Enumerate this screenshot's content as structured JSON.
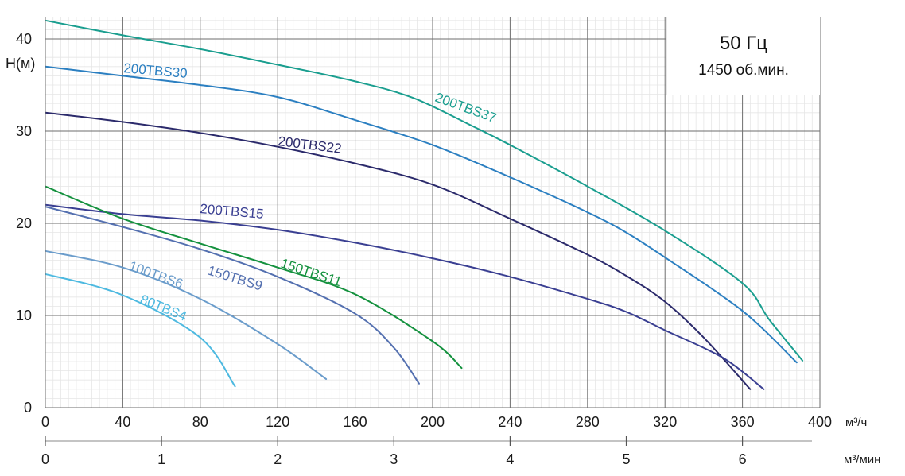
{
  "chart_data": {
    "type": "line",
    "ylabel": "H(м)",
    "x_unit": "м³/ч",
    "x2_unit": "м³/мин",
    "xlim": [
      0,
      400
    ],
    "ylim": [
      0,
      42
    ],
    "x_ticks": [
      "0",
      "40",
      "80",
      "120",
      "160",
      "200",
      "240",
      "280",
      "320",
      "360",
      "400"
    ],
    "x2_ticks": [
      "0",
      "1",
      "2",
      "3",
      "4",
      "5",
      "6"
    ],
    "y_ticks": [
      "0",
      "10",
      "20",
      "30",
      "40"
    ],
    "grid": true,
    "info_box": {
      "frequency": "50 Гц",
      "speed": "1450 об.мин."
    },
    "series": [
      {
        "name": "200TBS37",
        "color": "#1a9e8f",
        "points": [
          [
            0,
            42.0
          ],
          [
            40,
            40.4
          ],
          [
            80,
            38.9
          ],
          [
            120,
            37.2
          ],
          [
            160,
            35.4
          ],
          [
            190,
            33.6
          ],
          [
            220,
            30.6
          ],
          [
            240,
            28.5
          ],
          [
            280,
            24.0
          ],
          [
            320,
            19.2
          ],
          [
            360,
            13.5
          ],
          [
            374,
            9.5
          ],
          [
            391,
            5.1
          ]
        ]
      },
      {
        "name": "200TBS30",
        "color": "#2b7fc1",
        "points": [
          [
            0,
            37.0
          ],
          [
            40,
            36.0
          ],
          [
            80,
            35.0
          ],
          [
            120,
            33.7
          ],
          [
            160,
            31.2
          ],
          [
            200,
            28.5
          ],
          [
            240,
            25.0
          ],
          [
            280,
            21.2
          ],
          [
            300,
            19.0
          ],
          [
            320,
            16.3
          ],
          [
            360,
            10.5
          ],
          [
            388,
            4.9
          ]
        ]
      },
      {
        "name": "200TBS22",
        "color": "#2b2a6b",
        "points": [
          [
            0,
            32.0
          ],
          [
            40,
            31.0
          ],
          [
            80,
            29.8
          ],
          [
            120,
            28.3
          ],
          [
            160,
            26.5
          ],
          [
            200,
            24.2
          ],
          [
            240,
            20.5
          ],
          [
            280,
            16.6
          ],
          [
            300,
            14.3
          ],
          [
            320,
            11.5
          ],
          [
            340,
            7.6
          ],
          [
            364,
            2.0
          ]
        ]
      },
      {
        "name": "200TBS15",
        "color": "#3a3f92",
        "points": [
          [
            0,
            22.0
          ],
          [
            40,
            21.0
          ],
          [
            80,
            20.3
          ],
          [
            120,
            19.3
          ],
          [
            160,
            17.9
          ],
          [
            200,
            16.2
          ],
          [
            240,
            14.2
          ],
          [
            280,
            11.8
          ],
          [
            300,
            10.4
          ],
          [
            320,
            8.4
          ],
          [
            350,
            5.4
          ],
          [
            371,
            2.0
          ]
        ]
      },
      {
        "name": "150TBS11",
        "color": "#14913e",
        "points": [
          [
            0,
            24.0
          ],
          [
            40,
            20.5
          ],
          [
            80,
            17.8
          ],
          [
            120,
            15.2
          ],
          [
            160,
            12.3
          ],
          [
            200,
            7.2
          ],
          [
            215,
            4.3
          ]
        ]
      },
      {
        "name": "150TBS9",
        "color": "#5470b0",
        "points": [
          [
            0,
            21.8
          ],
          [
            40,
            19.6
          ],
          [
            80,
            17.2
          ],
          [
            120,
            14.2
          ],
          [
            160,
            10.2
          ],
          [
            180,
            6.5
          ],
          [
            193,
            2.6
          ]
        ]
      },
      {
        "name": "100TBS6",
        "color": "#6a9ccb",
        "points": [
          [
            0,
            17.0
          ],
          [
            40,
            15.2
          ],
          [
            80,
            11.8
          ],
          [
            120,
            6.9
          ],
          [
            145,
            3.1
          ]
        ]
      },
      {
        "name": "80TBS4",
        "color": "#4db9e0",
        "points": [
          [
            0,
            14.5
          ],
          [
            40,
            12.2
          ],
          [
            80,
            7.6
          ],
          [
            98,
            2.3
          ]
        ]
      }
    ]
  }
}
